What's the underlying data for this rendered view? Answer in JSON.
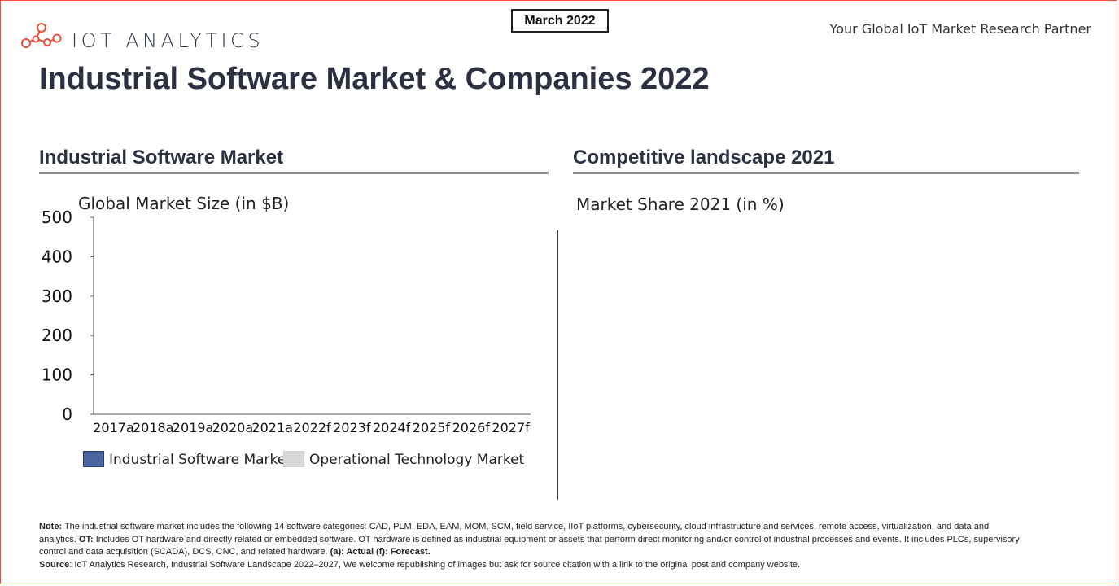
{
  "header": {
    "logo_text": "IOT ANALYTICS",
    "logo_icon": "molecule-network-icon",
    "date_badge": "March 2022",
    "tagline": "Your Global IoT Market Research Partner"
  },
  "title": "Industrial Software Market & Companies 2022",
  "colors": {
    "brand": "#e8503c",
    "title": "#2b3043",
    "industrial_software": "#4a66a0",
    "operational_technology": "#d8d8d8"
  },
  "left_section": {
    "title": "Industrial Software Market",
    "subtitle": "Global Market Size (in $B)"
  },
  "right_section": {
    "title": "Competitive landscape 2021",
    "subtitle": "Market Share 2021 (in %)"
  },
  "chart_data": {
    "type": "bar",
    "title": "Global Market Size (in $B)",
    "categories": [
      "2017a",
      "2018a",
      "2019a",
      "2020a",
      "2021a",
      "2022f",
      "2023f",
      "2024f",
      "2025f",
      "2026f",
      "2027f"
    ],
    "series": [
      {
        "name": "Industrial Software Market",
        "values": [
          0,
          0,
          0,
          0,
          0,
          0,
          0,
          0,
          0,
          0,
          0
        ]
      },
      {
        "name": "Operational Technology Market",
        "values": [
          0,
          0,
          0,
          0,
          0,
          0,
          0,
          0,
          0,
          0,
          0
        ]
      }
    ],
    "yticks": [
      "0",
      "100",
      "200",
      "300",
      "400",
      "500"
    ],
    "ylim": [
      0,
      500
    ],
    "grid": false,
    "legend": "bottom"
  },
  "legend": {
    "industrial_software": "Industrial Software Market",
    "operational_technology": "Operational Technology Market"
  },
  "footnote": {
    "note_label": "Note:",
    "note_text": " The industrial software market includes the following 14 software categories: CAD, PLM, EDA, EAM, MOM, SCM, field service, IIoT platforms, cybersecurity, cloud infrastructure and services, remote access, virtualization, and data and analytics. ",
    "ot_label": "OT:",
    "ot_text": " Includes OT hardware and directly related or embedded software. OT hardware is defined as industrial equipment or assets that perform direct monitoring and/or control of industrial processes and events. It includes PLCs, supervisory control and data acquisition (SCADA), DCS, CNC, and related hardware. ",
    "forecast_label": "(a): Actual (f): Forecast.",
    "source_label": "Source",
    "source_text": ": IoT Analytics Research, Industrial Software Landscape 2022–2027, We welcome republishing of images but ask for source citation with a link to the original post and company website."
  }
}
